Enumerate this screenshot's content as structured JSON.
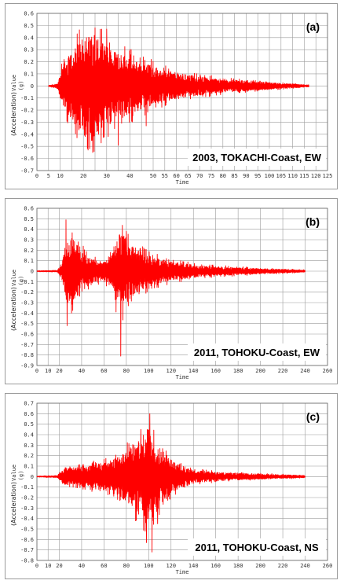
{
  "chart_data": [
    {
      "type": "line",
      "panel_label": "(a)",
      "title": "2003, TOKACHI-Coast,  EW",
      "xlabel": "Time",
      "ylabel": "(Acceleration)",
      "ylabel_unit": "Value",
      "ylabel_sub": "(g)",
      "xlim": [
        0,
        125
      ],
      "xticks": [
        0,
        5,
        10,
        15,
        20,
        25,
        30,
        35,
        40,
        45,
        50,
        55,
        60,
        65,
        70,
        75,
        80,
        85,
        90,
        95,
        100,
        105,
        110,
        115,
        120,
        125
      ],
      "xtick_labels": [
        "0",
        "5",
        "10",
        "",
        "20",
        "",
        "30",
        "",
        "40",
        "",
        "50",
        "55",
        "60",
        "65",
        "70",
        "75",
        "80",
        "85",
        "90",
        "95",
        "100",
        "105",
        "110",
        "115",
        "120",
        "125"
      ],
      "ylim": [
        -0.7,
        0.6
      ],
      "yticks": [
        "0.6",
        "0.5",
        "0.4",
        "0.3",
        "0.2",
        "0.1",
        "0",
        "-0.1",
        "-0.2",
        "-0.3",
        "-0.4",
        "-0.5",
        "-0.6",
        "-0.7"
      ],
      "color": "#ff0000",
      "signal_range": [
        5,
        117
      ],
      "envelope": [
        [
          5,
          0.004
        ],
        [
          9,
          0.02
        ],
        [
          11,
          0.18
        ],
        [
          15,
          0.28
        ],
        [
          20,
          0.42
        ],
        [
          24,
          0.47
        ],
        [
          28,
          0.36
        ],
        [
          35,
          0.28
        ],
        [
          45,
          0.2
        ],
        [
          55,
          0.13
        ],
        [
          65,
          0.09
        ],
        [
          80,
          0.055
        ],
        [
          95,
          0.035
        ],
        [
          105,
          0.022
        ],
        [
          117,
          0.008
        ]
      ],
      "peaks": [
        [
          25,
          0.48
        ],
        [
          30,
          0.47
        ],
        [
          22,
          -0.53
        ],
        [
          24,
          -0.55
        ],
        [
          35,
          -0.49
        ],
        [
          40,
          0.3
        ],
        [
          47,
          -0.33
        ]
      ],
      "grid": true
    },
    {
      "type": "line",
      "panel_label": "(b)",
      "title": "2011, TOHOKU-Coast,  EW",
      "xlabel": "Time",
      "ylabel": "(Acceleration)",
      "ylabel_unit": "Value",
      "ylabel_sub": "(g)",
      "xlim": [
        0,
        260
      ],
      "xticks": [
        0,
        10,
        20,
        40,
        60,
        80,
        100,
        120,
        140,
        160,
        180,
        200,
        220,
        240,
        260
      ],
      "xtick_labels": [
        "0",
        "10",
        "20",
        "40",
        "60",
        "80",
        "100",
        "120",
        "140",
        "160",
        "180",
        "200",
        "220",
        "240",
        "260"
      ],
      "ylim": [
        -0.9,
        0.6
      ],
      "yticks": [
        "0.6",
        "0.5",
        "0.4",
        "0.3",
        "0.2",
        "0.1",
        "0",
        "-0.1",
        "-0.2",
        "-0.3",
        "-0.4",
        "-0.5",
        "-0.6",
        "-0.7",
        "-0.8",
        "-0.9"
      ],
      "color": "#ff0000",
      "signal_range": [
        0,
        240
      ],
      "envelope": [
        [
          0,
          0.004
        ],
        [
          18,
          0.008
        ],
        [
          22,
          0.06
        ],
        [
          26,
          0.28
        ],
        [
          30,
          0.34
        ],
        [
          38,
          0.22
        ],
        [
          48,
          0.12
        ],
        [
          58,
          0.09
        ],
        [
          66,
          0.14
        ],
        [
          72,
          0.35
        ],
        [
          76,
          0.38
        ],
        [
          84,
          0.25
        ],
        [
          100,
          0.15
        ],
        [
          120,
          0.09
        ],
        [
          150,
          0.05
        ],
        [
          190,
          0.03
        ],
        [
          240,
          0.01
        ]
      ],
      "peaks": [
        [
          26,
          0.49
        ],
        [
          75,
          0.49
        ],
        [
          27,
          -0.52
        ],
        [
          75,
          -0.81
        ],
        [
          31,
          -0.4
        ],
        [
          80,
          0.38
        ]
      ],
      "grid": true
    },
    {
      "type": "line",
      "panel_label": "(c)",
      "title": "2011, TOHOKU-Coast,  NS",
      "xlabel": "Time",
      "ylabel": "(Acceleration)",
      "ylabel_unit": "Value",
      "ylabel_sub": "(g)",
      "xlim": [
        0,
        260
      ],
      "xticks": [
        0,
        10,
        20,
        40,
        60,
        80,
        100,
        120,
        140,
        160,
        180,
        200,
        220,
        240,
        260
      ],
      "xtick_labels": [
        "0",
        "10",
        "20",
        "40",
        "60",
        "80",
        "100",
        "120",
        "140",
        "160",
        "180",
        "200",
        "220",
        "240",
        "260"
      ],
      "ylim": [
        -0.8,
        0.7
      ],
      "yticks": [
        "0.7",
        "0.6",
        "0.5",
        "0.4",
        "0.3",
        "0.2",
        "0.1",
        "0",
        "-0.1",
        "-0.2",
        "-0.3",
        "-0.4",
        "-0.5",
        "-0.6",
        "-0.7",
        "-0.8"
      ],
      "color": "#ff0000",
      "signal_range": [
        0,
        240
      ],
      "envelope": [
        [
          0,
          0.004
        ],
        [
          18,
          0.01
        ],
        [
          24,
          0.07
        ],
        [
          40,
          0.1
        ],
        [
          60,
          0.13
        ],
        [
          75,
          0.2
        ],
        [
          88,
          0.33
        ],
        [
          96,
          0.45
        ],
        [
          102,
          0.45
        ],
        [
          110,
          0.28
        ],
        [
          122,
          0.14
        ],
        [
          140,
          0.06
        ],
        [
          170,
          0.035
        ],
        [
          200,
          0.025
        ],
        [
          240,
          0.012
        ]
      ],
      "peaks": [
        [
          98,
          0.6
        ],
        [
          101,
          0.6
        ],
        [
          103,
          -0.72
        ],
        [
          98,
          -0.63
        ],
        [
          93,
          0.45
        ],
        [
          108,
          -0.45
        ]
      ],
      "grid": true
    }
  ]
}
